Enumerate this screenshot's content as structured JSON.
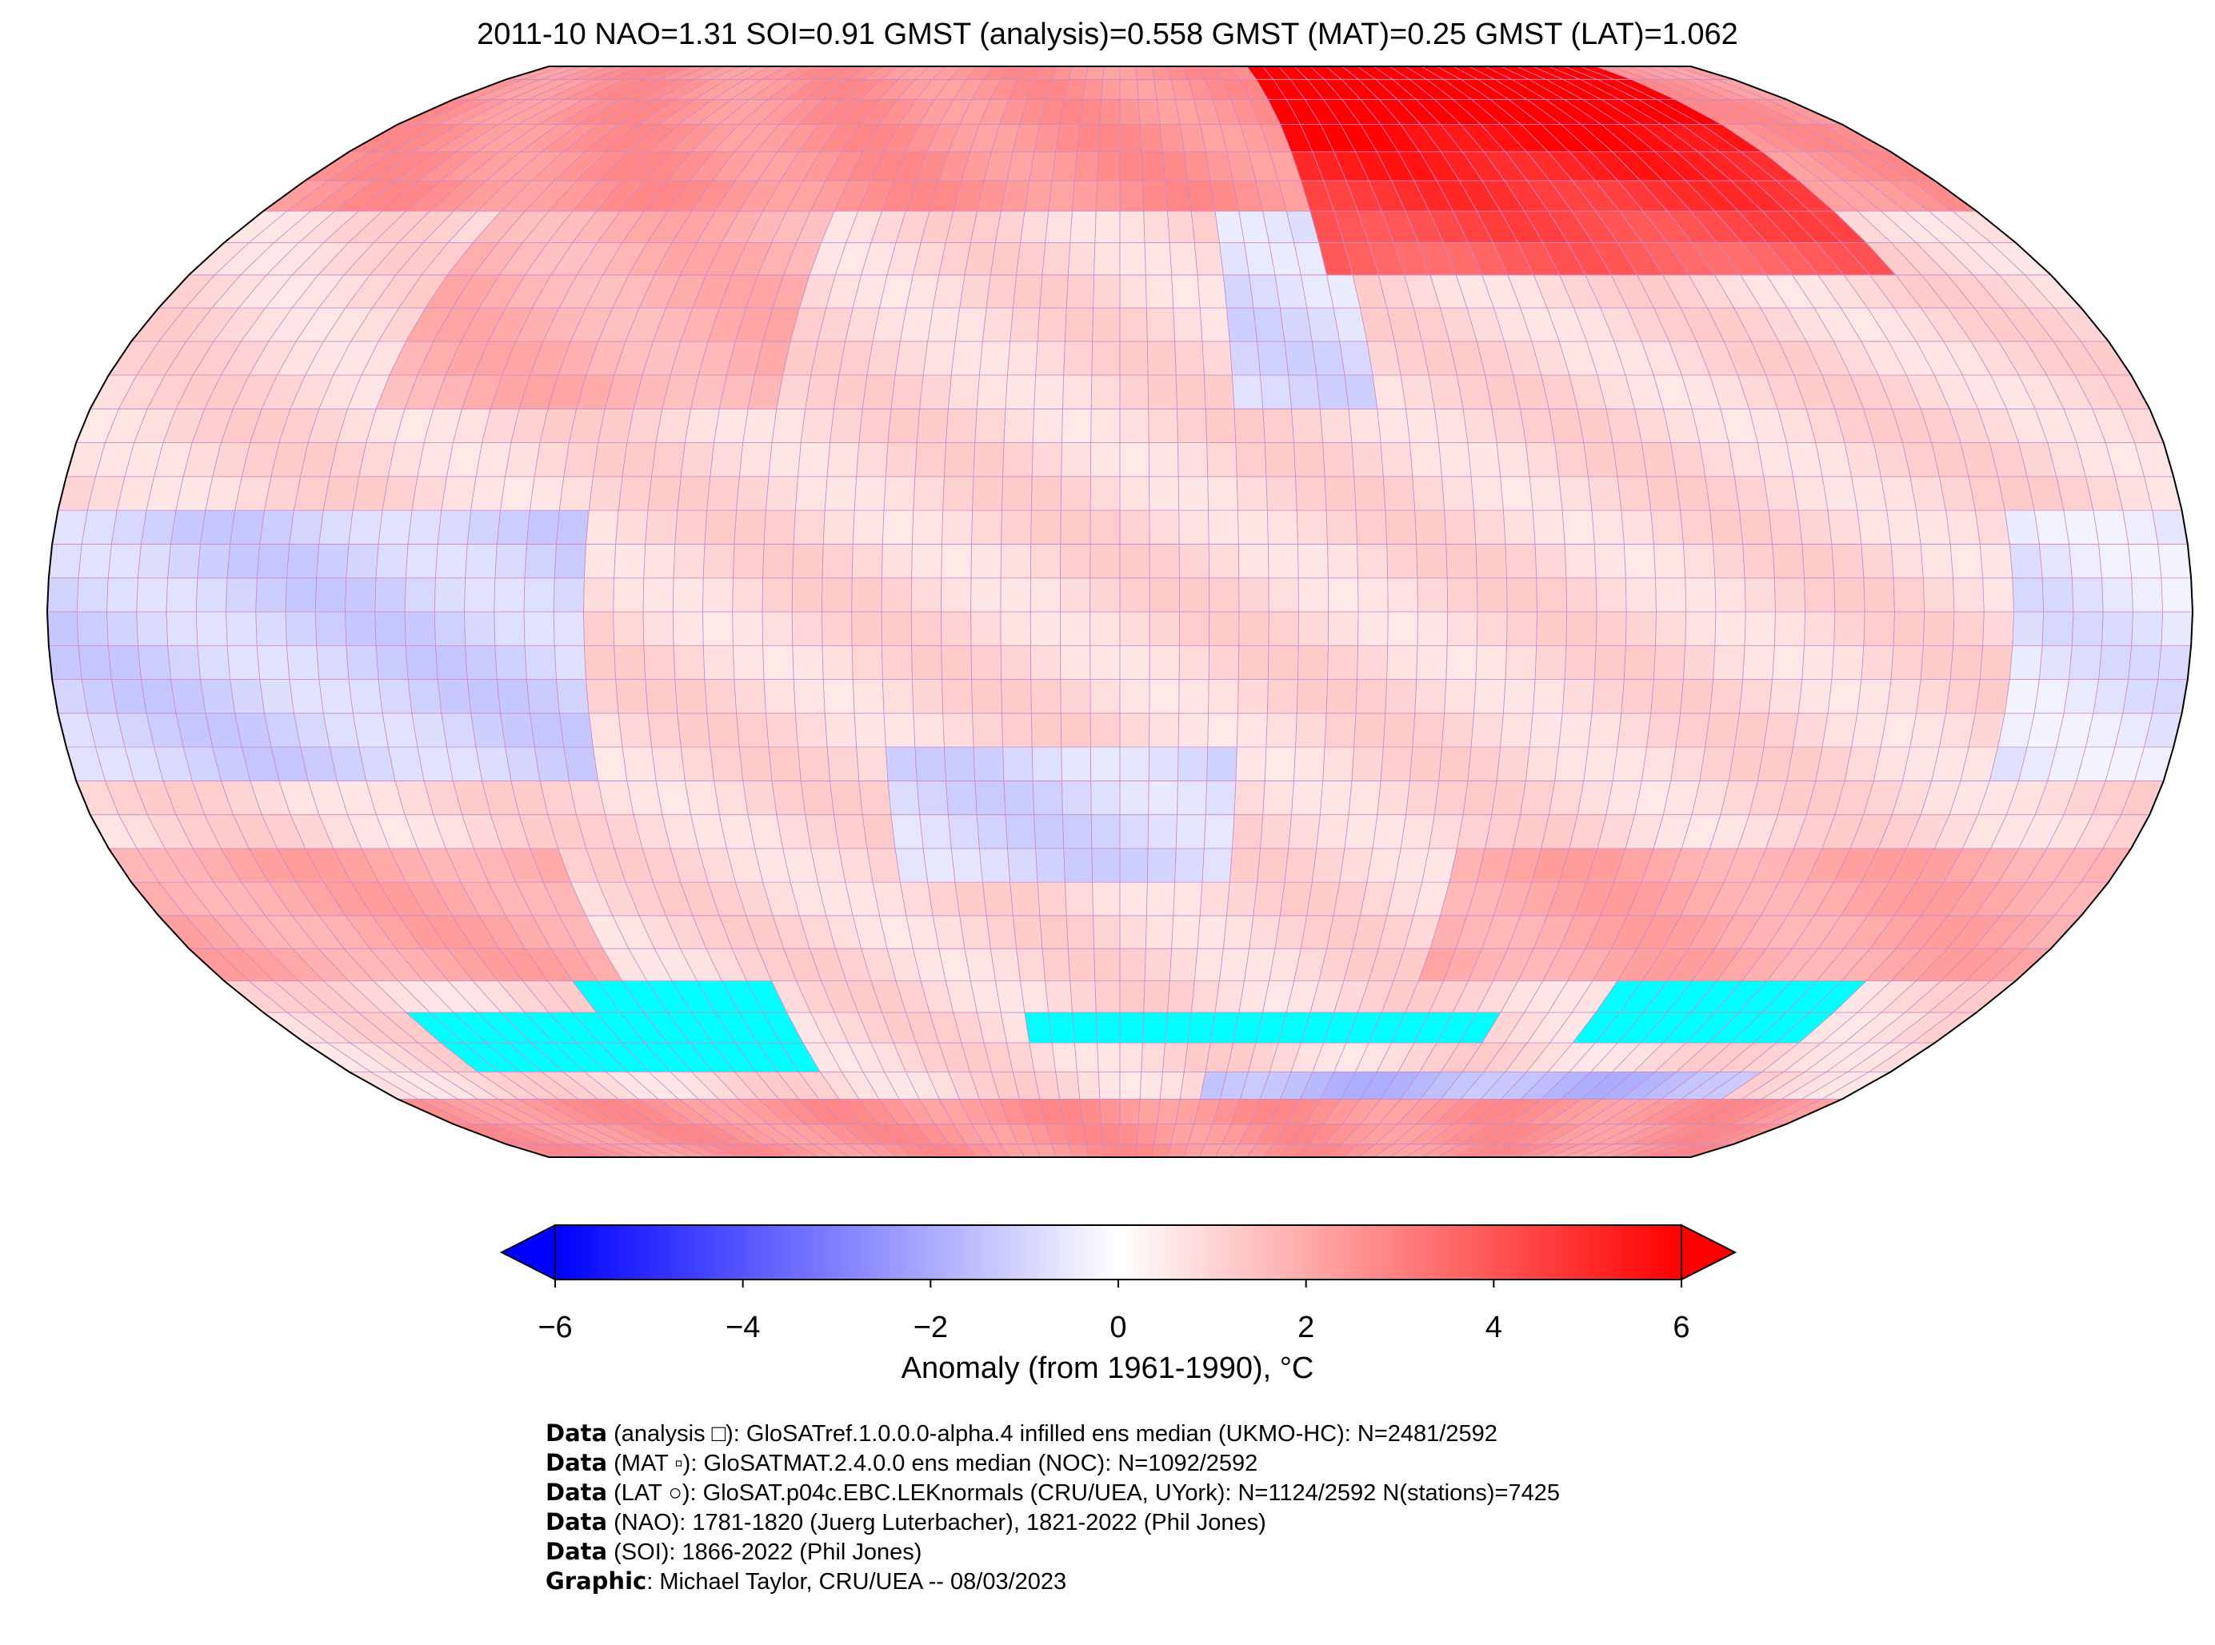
{
  "chart_data": {
    "type": "heatmap",
    "title": "2011-10 NAO=1.31 SOI=0.91 GMST (analysis)=0.558 GMST (MAT)=0.25 GMST (LAT)=1.062",
    "projection": "Robinson",
    "grid": "5x5 degree",
    "colormap": "bwr",
    "missing_color": "#00ffff",
    "colorbar": {
      "label": "Anomaly (from 1961-1990), °C",
      "range": [
        -6,
        6
      ],
      "ticks": [
        "−6",
        "−4",
        "−2",
        "0",
        "2",
        "4",
        "6"
      ],
      "extend": "both",
      "low_color": "#0000ff",
      "high_color": "#ff0000"
    }
  },
  "footer": [
    {
      "bold": "Data",
      "text": " (analysis □): GloSATref.1.0.0.0-alpha.4 infilled ens median (UKMO-HC): N=2481/2592"
    },
    {
      "bold": "Data",
      "text": " (MAT ▫): GloSATMAT.2.4.0.0 ens median (NOC): N=1092/2592"
    },
    {
      "bold": "Data",
      "text": " (LAT ○): GloSAT.p04c.EBC.LEKnormals (CRU/UEA, UYork): N=1124/2592 N(stations)=7425"
    },
    {
      "bold": "Data",
      "text": " (NAO): 1781-1820 (Juerg Luterbacher), 1821-2022 (Phil Jones)"
    },
    {
      "bold": "Data",
      "text": " (SOI): 1866-2022 (Phil Jones)"
    },
    {
      "bold": "Graphic",
      "text": ": Michael Taylor, CRU/UEA -- 08/03/2023"
    }
  ]
}
